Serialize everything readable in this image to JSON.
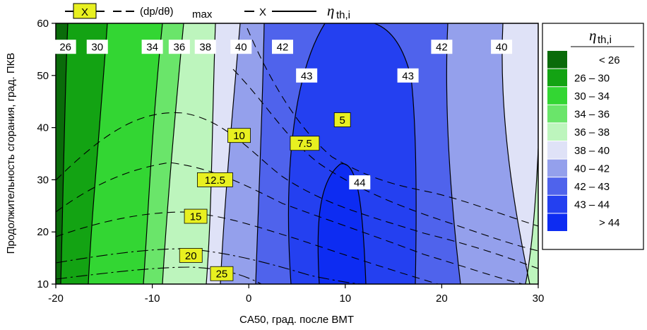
{
  "chart_data": {
    "type": "heatmap",
    "xlabel": "CA50, град. после ВМТ",
    "ylabel": "Продолжительность сгорания, град. ПКВ",
    "xlim": [
      -20,
      30
    ],
    "ylim": [
      10,
      60
    ],
    "x_ticks": [
      "-20",
      "-10",
      "0",
      "10",
      "20",
      "30"
    ],
    "y_ticks": [
      "10",
      "20",
      "30",
      "40",
      "50",
      "60"
    ],
    "top_legend": {
      "marker_text": "X",
      "dpdtheta_label": "(dp/dθ)",
      "dpdtheta_sub": "max",
      "eta_marker_text": "X",
      "eta_symbol": "η",
      "eta_sub": "th,i"
    },
    "color_legend": {
      "title": "η",
      "title_sub": "th,i",
      "bands": [
        {
          "label": "< 26",
          "color": "#0a6b0a"
        },
        {
          "label": "26 – 30",
          "color": "#13a313"
        },
        {
          "label": "30 – 34",
          "color": "#33d633"
        },
        {
          "label": "34 – 36",
          "color": "#6ae56a"
        },
        {
          "label": "36 – 38",
          "color": "#bdf5bd"
        },
        {
          "label": "38 – 40",
          "color": "#dfe2f7"
        },
        {
          "label": "40 – 42",
          "color": "#94a0ec"
        },
        {
          "label": "42 – 43",
          "color": "#4f63ec"
        },
        {
          "label": "43 – 44",
          "color": "#2440f0"
        },
        {
          "label": "> 44",
          "color": "#0d2cf2"
        }
      ]
    },
    "efficiency_contours": [
      {
        "level": "26",
        "label": {
          "x": -19.0,
          "y": 55.5
        }
      },
      {
        "level": "30",
        "label": {
          "x": -15.7,
          "y": 55.5
        }
      },
      {
        "level": "34",
        "label": {
          "x": -10.0,
          "y": 55.5
        }
      },
      {
        "level": "36",
        "label": {
          "x": -7.2,
          "y": 55.5
        }
      },
      {
        "level": "38",
        "label": {
          "x": -4.5,
          "y": 55.5
        }
      },
      {
        "level": "40",
        "label": {
          "x": -0.8,
          "y": 55.5
        }
      },
      {
        "level": "42",
        "label": {
          "x": 3.5,
          "y": 55.5
        }
      },
      {
        "level": "43",
        "label": {
          "x": 6.0,
          "y": 50.0
        }
      },
      {
        "level": "43",
        "label": {
          "x": 16.5,
          "y": 50.0
        }
      },
      {
        "level": "44",
        "label": {
          "x": 11.5,
          "y": 29.5
        }
      },
      {
        "level": "42",
        "label": {
          "x": 20.0,
          "y": 55.5
        }
      },
      {
        "level": "40",
        "label": {
          "x": 26.2,
          "y": 55.5
        }
      }
    ],
    "dpdtheta_contours": [
      {
        "level": "5",
        "label": {
          "x": 9.7,
          "y": 41.5
        }
      },
      {
        "level": "7.5",
        "label": {
          "x": 5.8,
          "y": 37.0
        }
      },
      {
        "level": "10",
        "label": {
          "x": -1.0,
          "y": 38.5
        }
      },
      {
        "level": "12.5",
        "label": {
          "x": -3.5,
          "y": 30.0
        }
      },
      {
        "level": "15",
        "label": {
          "x": -5.5,
          "y": 23.0
        }
      },
      {
        "level": "20",
        "label": {
          "x": -6.0,
          "y": 15.5
        }
      },
      {
        "level": "25",
        "label": {
          "x": -2.8,
          "y": 12.0
        }
      }
    ]
  }
}
